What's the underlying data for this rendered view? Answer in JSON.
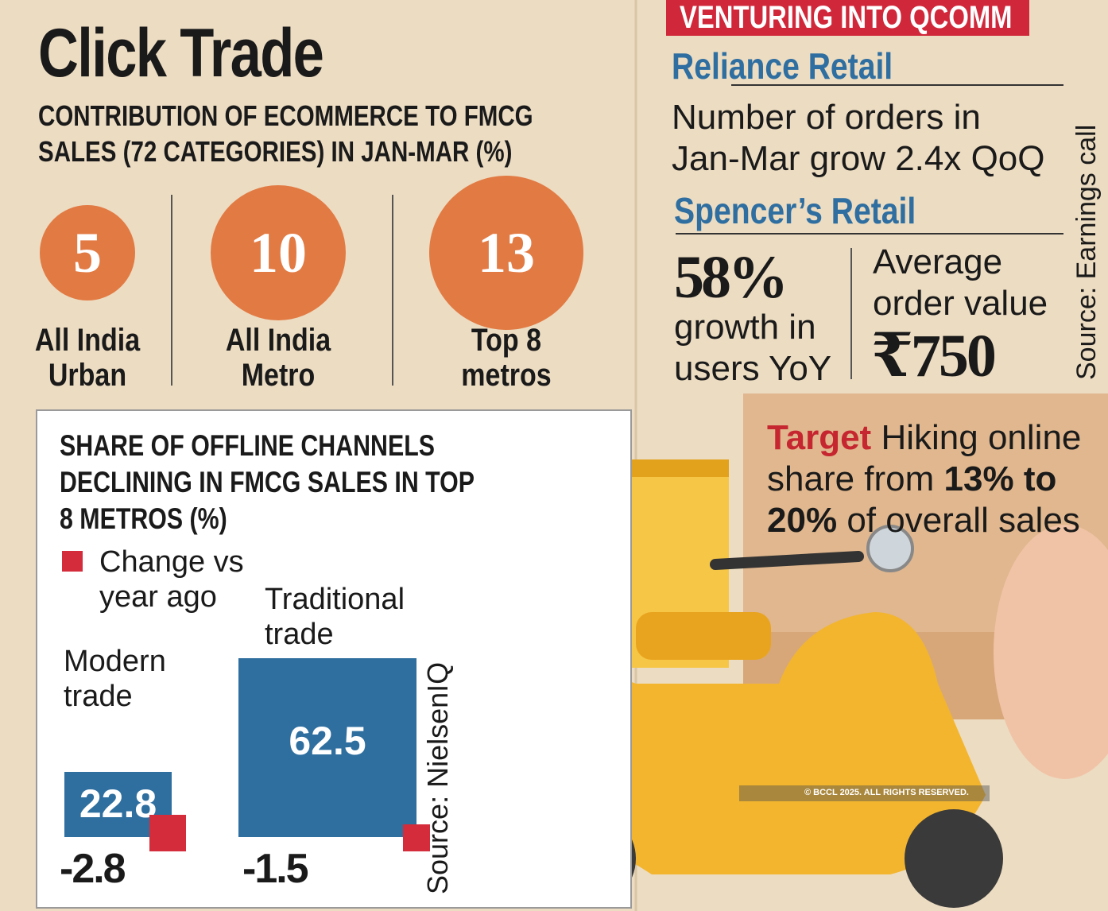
{
  "title": "Click Trade",
  "chart_data": [
    {
      "type": "bubble",
      "title": "CONTRIBUTION OF ECOMMERCE TO FMCG SALES (72 CATEGORIES) IN JAN-MAR (%)",
      "categories": [
        "All India Urban",
        "All India Metro",
        "Top 8 metros"
      ],
      "values": [
        5,
        10,
        13
      ],
      "color": "#e27a43"
    },
    {
      "type": "bar",
      "title": "SHARE OF OFFLINE CHANNELS DECLINING IN FMCG SALES IN TOP 8 METROS (%)",
      "categories": [
        "Modern trade",
        "Traditional trade"
      ],
      "series": [
        {
          "values": [
            22.8,
            62.5
          ],
          "color": "#2f6f9f"
        },
        {
          "name": "Change vs year ago",
          "values": [
            -2.8,
            -1.5
          ],
          "color": "#d42c3a"
        }
      ],
      "source": "Source: NielsenIQ"
    }
  ],
  "qcomm": {
    "heading": "VENTURING INTO QCOMM",
    "reliance": {
      "name": "Reliance Retail",
      "stat": "Number of orders in Jan-Mar grow 2.4x QoQ"
    },
    "spencers": {
      "name": "Spencer’s Retail",
      "growth_value": "58%",
      "growth_label": "growth in users YoY",
      "aov_label": "Average order value",
      "aov_value": "₹750"
    },
    "source": "Source: Earnings call",
    "target": {
      "label": "Target",
      "text1": "Hiking online share from",
      "range": "13% to 20%",
      "text2": "of overall sales"
    }
  },
  "copyright": "© BCCL 2025. ALL RIGHTS RESERVED."
}
